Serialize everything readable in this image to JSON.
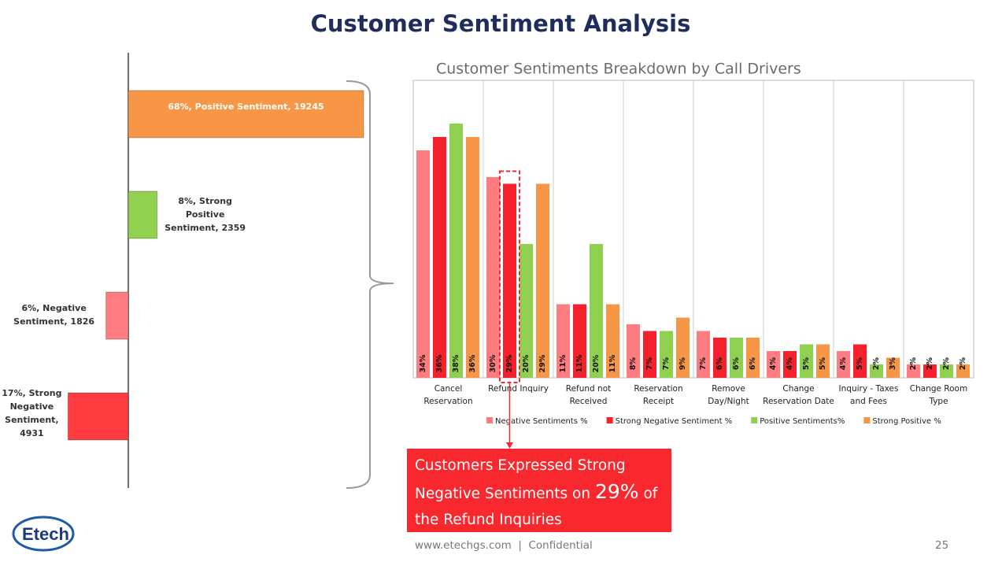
{
  "title": "Customer Sentiment Analysis",
  "chart_data": [
    {
      "type": "bar",
      "orientation": "horizontal",
      "values": [
        19245,
        2359,
        -1826,
        -4931
      ],
      "value_labels": [
        "68%, Positive Sentiment, 19245",
        "8%, Strong Positive Sentiment, 2359",
        "6%, Negative Sentiment, 1826",
        "17%, Strong Negative Sentiment, 4931"
      ],
      "colors": [
        "#f79646",
        "#92d050",
        "#ff7c80",
        "#ff3b3f"
      ]
    },
    {
      "type": "bar",
      "orientation": "vertical",
      "title": "Customer Sentiments Breakdown by Call Drivers",
      "categories": [
        "Cancel Reservation",
        "Refund Inquiry",
        "Refund not Received",
        "Reservation Receipt",
        "Remove Day/Night",
        "Change Reservation Date",
        "Inquiry - Taxes and Fees",
        "Change Room Type"
      ],
      "series": [
        {
          "name": "Negative Sentiments %",
          "color": "#ff7c80",
          "values": [
            34,
            30,
            11,
            8,
            7,
            4,
            4,
            2
          ],
          "value_labels": [
            "34%",
            "30%",
            "11%",
            "8%",
            "7%",
            "4%",
            "4%",
            "2%"
          ]
        },
        {
          "name": "Strong Negative Sentiment %",
          "color": "#f5222d",
          "values": [
            36,
            29,
            11,
            7,
            6,
            4,
            5,
            2
          ],
          "value_labels": [
            "36%",
            "29%",
            "11%",
            "7%",
            "6%",
            "4%",
            "5%",
            "2%"
          ]
        },
        {
          "name": "Positive Sentiments%",
          "color": "#8fd14f",
          "values": [
            38,
            20,
            20,
            7,
            6,
            5,
            2,
            2
          ],
          "value_labels": [
            "38%",
            "20%",
            "20%",
            "7%",
            "6%",
            "5%",
            "2%",
            "2%"
          ]
        },
        {
          "name": "Strong Positive %",
          "color": "#f79646",
          "values": [
            36,
            29,
            11,
            9,
            6,
            5,
            3,
            2
          ],
          "value_labels": [
            "36%",
            "29%",
            "11%",
            "9%",
            "6%",
            "5%",
            "3%",
            "2%"
          ]
        }
      ],
      "legend": "bottom",
      "grid": true
    }
  ],
  "callout": {
    "before": "Customers Expressed Strong Negative Sentiments on",
    "highlight": "29%",
    "after": "of the Refund Inquiries"
  },
  "footer": {
    "site": "www.etechgs.com  |  Confidential",
    "page": "25"
  },
  "logo": "Etech"
}
